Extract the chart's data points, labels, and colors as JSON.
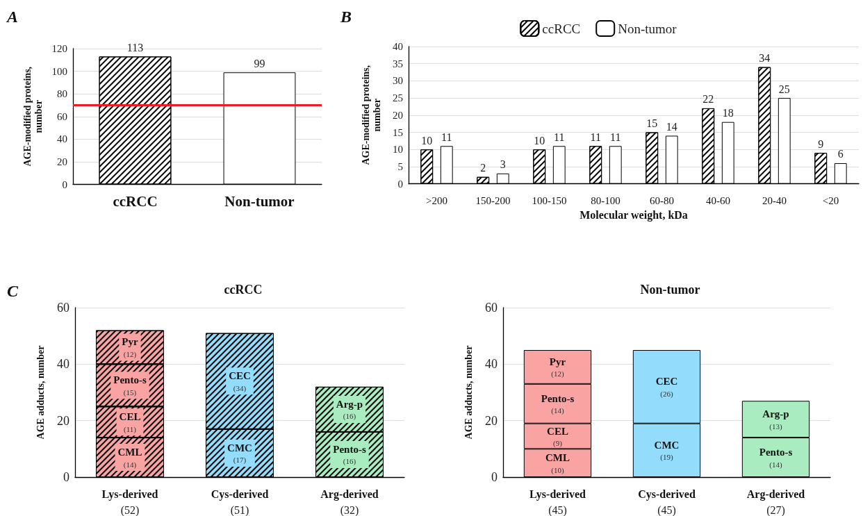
{
  "chart_data": [
    {
      "type": "bar",
      "annotations": [
        "A"
      ],
      "ylabel": "AGE-modified proteins, number",
      "categories": [
        "ccRCC",
        "Non-tumor"
      ],
      "values": [
        113,
        99
      ],
      "colors": [
        "#ffffff",
        "#ffffff"
      ],
      "ylim": [
        0,
        120
      ],
      "yticks": [
        0,
        20,
        40,
        60,
        80,
        100,
        120
      ],
      "grid": "y",
      "data_labels": true,
      "legend": false,
      "ref_lines": [
        {
          "axis": "y",
          "value": 70,
          "color": "#ee1c25"
        }
      ]
    },
    {
      "type": "bar",
      "annotations": [
        "B"
      ],
      "xlabel": "Molecular weight, kDa",
      "ylabel": "AGE-modified proteins, number",
      "categories": [
        ">200",
        "150-200",
        "100-150",
        "80-100",
        "60-80",
        "40-60",
        "20-40",
        "<20"
      ],
      "series": [
        {
          "name": "ccRCC",
          "color": "#ffffff",
          "values": [
            10,
            2,
            10,
            11,
            15,
            22,
            34,
            9
          ]
        },
        {
          "name": "Non-tumor",
          "color": "#ffffff",
          "values": [
            11,
            3,
            11,
            11,
            14,
            18,
            25,
            6
          ]
        }
      ],
      "ylim": [
        0,
        40
      ],
      "yticks": [
        0,
        5,
        10,
        15,
        20,
        25,
        30,
        35,
        40
      ],
      "grid": "y",
      "data_labels": true,
      "legend": "top"
    },
    {
      "type": "bar",
      "stacked": true,
      "title": "ccRCC",
      "annotations": [
        "C"
      ],
      "ylabel": "AGE adducts, number",
      "categories": [
        "Lys-derived",
        "Cys-derived",
        "Arg-derived"
      ],
      "totals": [
        "(52)",
        "(51)",
        "(32)"
      ],
      "series": [
        {
          "colors": [
            "#f9a3a3",
            "#93dcfb",
            "#a8ecbf"
          ],
          "values": [
            14,
            17,
            16
          ],
          "value_labels": [
            "CML\n(14)",
            "CMC\n(17)",
            "Pento-s\n(16)"
          ]
        },
        {
          "colors": [
            "#f9a3a3",
            "#93dcfb",
            "#a8ecbf"
          ],
          "values": [
            11,
            34,
            16
          ],
          "value_labels": [
            "CEL\n(11)",
            "CEC\n(34)",
            "Arg-p\n(16)"
          ]
        },
        {
          "colors": [
            "#f9a3a3",
            "#93dcfb",
            "#a8ecbf"
          ],
          "values": [
            15,
            null,
            null
          ],
          "value_labels": [
            "Pento-s\n(15)",
            null,
            null
          ]
        },
        {
          "colors": [
            "#f9a3a3",
            "#93dcfb",
            "#a8ecbf"
          ],
          "values": [
            12,
            null,
            null
          ],
          "value_labels": [
            "Pyr\n(12)",
            null,
            null
          ]
        }
      ],
      "ylim": [
        0,
        60
      ],
      "yticks": [
        0,
        20,
        40,
        60
      ],
      "grid": "y",
      "legend": false
    },
    {
      "type": "bar",
      "stacked": true,
      "title": "Non-tumor",
      "ylabel": "AGE adducts, number",
      "categories": [
        "Lys-derived",
        "Cys-derived",
        "Arg-derived"
      ],
      "totals": [
        "(45)",
        "(45)",
        "(27)"
      ],
      "series": [
        {
          "colors": [
            "#f9a3a3",
            "#93dcfb",
            "#a8ecbf"
          ],
          "values": [
            10,
            19,
            14
          ],
          "value_labels": [
            "CML\n(10)",
            "CMC\n(19)",
            "Pento-s\n(14)"
          ]
        },
        {
          "colors": [
            "#f9a3a3",
            "#93dcfb",
            "#a8ecbf"
          ],
          "values": [
            9,
            26,
            13
          ],
          "value_labels": [
            "CEL\n(9)",
            "CEC\n(26)",
            "Arg-p\n(13)"
          ]
        },
        {
          "colors": [
            "#f9a3a3",
            "#93dcfb",
            "#a8ecbf"
          ],
          "values": [
            14,
            null,
            null
          ],
          "value_labels": [
            "Pento-s\n(14)",
            null,
            null
          ]
        },
        {
          "colors": [
            "#f9a3a3",
            "#93dcfb",
            "#a8ecbf"
          ],
          "values": [
            12,
            null,
            null
          ],
          "value_labels": [
            "Pyr\n(12)",
            null,
            null
          ]
        }
      ],
      "ylim": [
        0,
        60
      ],
      "yticks": [
        0,
        20,
        40,
        60
      ],
      "grid": "y",
      "legend": false
    }
  ]
}
